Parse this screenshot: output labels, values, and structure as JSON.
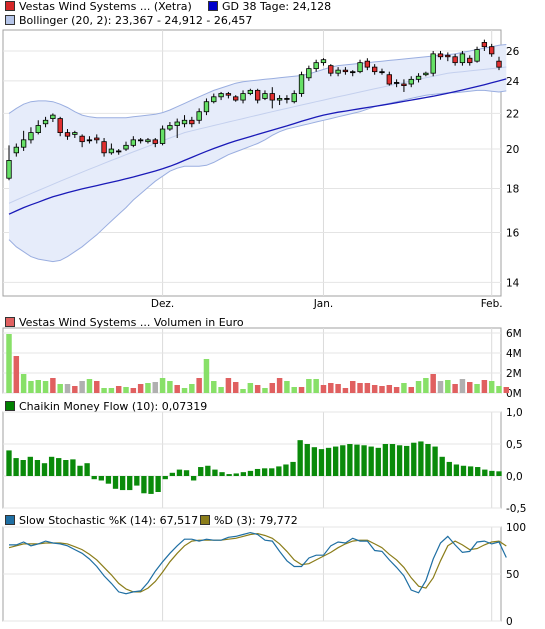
{
  "panels": {
    "price": {
      "legend": [
        {
          "label": "Vestas Wind Systems ... (Xetra)",
          "color": "#d62728"
        },
        {
          "label": "GD 38 Tage: 24,128",
          "color": "#0000cc"
        },
        {
          "label": "Bollinger (20, 2): 23,367 - 24,912 - 26,457",
          "color": "#b4c4e8"
        }
      ]
    },
    "volume": {
      "legend": [
        {
          "label": "Vestas Wind Systems ... Volumen in Euro",
          "color": "#e06060"
        }
      ]
    },
    "cmf": {
      "legend": [
        {
          "label": "Chaikin Money Flow (10): 0,07319",
          "color": "#008000"
        }
      ]
    },
    "stoch": {
      "legend": [
        {
          "label": "Slow Stochastic %K (14): 67,517",
          "color": "#1f6fa3"
        },
        {
          "label": "%D (3): 79,772",
          "color": "#8b7d1a"
        }
      ]
    }
  },
  "chart_data": [
    {
      "type": "candlestick",
      "title": "Vestas Wind Systems ... (Xetra)",
      "x_tick_labels": [
        "Dez.",
        "Jan.",
        "Feb."
      ],
      "y_tick_labels": [
        "14",
        "16",
        "18",
        "20",
        "22",
        "24",
        "26"
      ],
      "ylim": [
        13.5,
        27.5
      ],
      "y_scale": "log",
      "candles": [
        [
          18.5,
          19.4,
          18.4,
          20.2
        ],
        [
          19.8,
          20.1,
          19.6,
          20.3
        ],
        [
          20.1,
          20.5,
          19.9,
          21.0
        ],
        [
          20.5,
          20.9,
          20.3,
          21.2
        ],
        [
          20.9,
          21.3,
          20.8,
          21.6
        ],
        [
          21.4,
          21.6,
          21.2,
          21.8
        ],
        [
          21.7,
          21.9,
          21.5,
          22.0
        ],
        [
          21.7,
          20.9,
          20.7,
          21.8
        ],
        [
          20.9,
          20.7,
          20.5,
          21.1
        ],
        [
          20.8,
          20.9,
          20.6,
          21.0
        ],
        [
          20.7,
          20.4,
          20.1,
          20.8
        ],
        [
          20.5,
          20.5,
          20.3,
          20.7
        ],
        [
          20.6,
          20.5,
          20.3,
          20.8
        ],
        [
          20.4,
          19.8,
          19.6,
          20.6
        ],
        [
          19.8,
          20.0,
          19.7,
          20.3
        ],
        [
          19.9,
          19.9,
          19.7,
          20.0
        ],
        [
          20.0,
          20.2,
          19.9,
          20.4
        ],
        [
          20.2,
          20.5,
          20.1,
          20.7
        ],
        [
          20.5,
          20.5,
          20.3,
          20.6
        ],
        [
          20.4,
          20.5,
          20.3,
          20.6
        ],
        [
          20.5,
          20.3,
          20.1,
          20.6
        ],
        [
          20.3,
          21.1,
          20.2,
          21.3
        ],
        [
          21.1,
          21.3,
          21.0,
          21.5
        ],
        [
          21.3,
          21.5,
          20.6,
          21.7
        ],
        [
          21.4,
          21.6,
          21.2,
          21.9
        ],
        [
          21.6,
          21.4,
          21.2,
          21.8
        ],
        [
          21.6,
          22.1,
          21.4,
          22.3
        ],
        [
          22.1,
          22.7,
          21.9,
          22.9
        ],
        [
          22.7,
          23.0,
          22.6,
          23.2
        ],
        [
          23.0,
          23.2,
          22.8,
          23.3
        ],
        [
          23.2,
          23.1,
          22.9,
          23.3
        ],
        [
          23.0,
          22.8,
          22.7,
          23.1
        ],
        [
          22.8,
          23.2,
          22.6,
          23.4
        ],
        [
          23.2,
          23.4,
          23.1,
          23.5
        ],
        [
          23.4,
          22.8,
          22.6,
          23.5
        ],
        [
          22.9,
          23.2,
          22.8,
          23.4
        ],
        [
          23.2,
          22.8,
          22.3,
          23.6
        ],
        [
          22.8,
          22.9,
          22.5,
          23.1
        ],
        [
          22.9,
          22.9,
          22.6,
          23.1
        ],
        [
          22.7,
          23.2,
          22.6,
          23.4
        ],
        [
          23.2,
          24.4,
          23.0,
          24.6
        ],
        [
          24.2,
          24.8,
          24.0,
          25.0
        ],
        [
          24.8,
          25.2,
          24.6,
          25.4
        ],
        [
          25.2,
          25.4,
          25.0,
          25.5
        ],
        [
          25.0,
          24.5,
          24.3,
          25.1
        ],
        [
          24.5,
          24.7,
          24.3,
          24.9
        ],
        [
          24.7,
          24.6,
          24.4,
          24.9
        ],
        [
          24.6,
          24.6,
          24.3,
          24.7
        ],
        [
          24.6,
          25.2,
          24.5,
          25.4
        ],
        [
          25.3,
          24.9,
          24.7,
          25.5
        ],
        [
          24.9,
          24.6,
          24.4,
          25.1
        ],
        [
          24.6,
          24.6,
          24.4,
          24.8
        ],
        [
          24.4,
          23.8,
          23.7,
          24.6
        ],
        [
          23.9,
          23.9,
          23.6,
          24.1
        ],
        [
          23.8,
          23.7,
          23.3,
          24.1
        ],
        [
          23.8,
          24.1,
          23.6,
          24.3
        ],
        [
          24.1,
          24.3,
          23.9,
          24.5
        ],
        [
          24.4,
          24.5,
          24.3,
          24.6
        ],
        [
          24.5,
          25.8,
          24.3,
          26.0
        ],
        [
          25.8,
          25.6,
          25.4,
          26.0
        ],
        [
          25.7,
          25.6,
          25.3,
          25.9
        ],
        [
          25.6,
          25.2,
          25.0,
          25.8
        ],
        [
          25.2,
          25.8,
          25.0,
          26.0
        ],
        [
          25.5,
          25.2,
          25.0,
          25.7
        ],
        [
          25.3,
          26.1,
          25.2,
          26.3
        ],
        [
          26.6,
          26.3,
          26.0,
          26.8
        ],
        [
          26.3,
          25.8,
          25.6,
          26.5
        ],
        [
          25.3,
          24.9,
          24.7,
          25.6
        ]
      ],
      "series": [
        {
          "name": "GD 38 Tage",
          "values": [
            16.8,
            16.95,
            17.1,
            17.23,
            17.35,
            17.48,
            17.6,
            17.7,
            17.8,
            17.89,
            17.98,
            18.06,
            18.14,
            18.22,
            18.3,
            18.38,
            18.47,
            18.56,
            18.66,
            18.76,
            18.86,
            18.97,
            19.1,
            19.24,
            19.4,
            19.56,
            19.72,
            19.88,
            20.03,
            20.17,
            20.31,
            20.44,
            20.56,
            20.68,
            20.8,
            20.92,
            21.04,
            21.16,
            21.28,
            21.41,
            21.54,
            21.67,
            21.79,
            21.9,
            21.99,
            22.07,
            22.14,
            22.21,
            22.28,
            22.35,
            22.42,
            22.49,
            22.56,
            22.64,
            22.72,
            22.8,
            22.88,
            22.96,
            23.04,
            23.13,
            23.22,
            23.32,
            23.42,
            23.53,
            23.64,
            23.76,
            23.88,
            24.0,
            24.128
          ]
        },
        {
          "name": "Bollinger oben",
          "values": [
            22.0,
            22.3,
            22.55,
            22.7,
            22.75,
            22.75,
            22.7,
            22.55,
            22.35,
            22.1,
            21.9,
            21.8,
            21.75,
            21.75,
            21.75,
            21.75,
            21.75,
            21.8,
            21.85,
            21.9,
            21.95,
            22.05,
            22.2,
            22.4,
            22.6,
            22.8,
            23.0,
            23.2,
            23.4,
            23.55,
            23.7,
            23.85,
            23.95,
            24.0,
            24.05,
            24.1,
            24.15,
            24.2,
            24.25,
            24.3,
            24.35,
            24.45,
            24.6,
            24.75,
            24.9,
            25.0,
            25.05,
            25.1,
            25.15,
            25.2,
            25.25,
            25.3,
            25.35,
            25.4,
            25.45,
            25.5,
            25.55,
            25.6,
            25.65,
            25.7,
            25.75,
            25.8,
            25.9,
            26.0,
            26.1,
            26.2,
            26.3,
            26.4,
            26.457
          ]
        },
        {
          "name": "Bollinger Mitte",
          "values": [
            17.3,
            17.45,
            17.6,
            17.75,
            17.9,
            18.05,
            18.2,
            18.35,
            18.5,
            18.65,
            18.8,
            18.95,
            19.1,
            19.25,
            19.4,
            19.55,
            19.7,
            19.85,
            20.0,
            20.15,
            20.3,
            20.45,
            20.6,
            20.75,
            20.9,
            21.0,
            21.1,
            21.2,
            21.3,
            21.4,
            21.5,
            21.6,
            21.7,
            21.8,
            21.9,
            22.0,
            22.1,
            22.2,
            22.3,
            22.4,
            22.5,
            22.6,
            22.7,
            22.8,
            22.9,
            23.0,
            23.1,
            23.2,
            23.3,
            23.4,
            23.5,
            23.6,
            23.7,
            23.8,
            23.9,
            24.0,
            24.1,
            24.2,
            24.3,
            24.4,
            24.5,
            24.55,
            24.6,
            24.65,
            24.7,
            24.75,
            24.8,
            24.85,
            24.912
          ]
        },
        {
          "name": "Bollinger unten",
          "values": [
            15.7,
            15.4,
            15.2,
            15.0,
            14.9,
            14.85,
            14.8,
            14.85,
            15.0,
            15.2,
            15.4,
            15.65,
            15.9,
            16.2,
            16.5,
            16.8,
            17.1,
            17.45,
            17.75,
            18.05,
            18.35,
            18.6,
            18.85,
            19.0,
            19.1,
            19.1,
            19.1,
            19.15,
            19.3,
            19.5,
            19.7,
            19.85,
            20.0,
            20.15,
            20.3,
            20.5,
            20.75,
            20.95,
            21.1,
            21.2,
            21.3,
            21.4,
            21.5,
            21.6,
            21.7,
            21.8,
            21.9,
            22.0,
            22.1,
            22.25,
            22.4,
            22.5,
            22.6,
            22.7,
            22.8,
            22.9,
            23.0,
            23.1,
            23.15,
            23.2,
            23.25,
            23.25,
            23.3,
            23.35,
            23.4,
            23.4,
            23.35,
            23.3,
            23.367
          ]
        }
      ]
    },
    {
      "type": "bar",
      "title": "Vestas Wind Systems ... Volumen in Euro",
      "y_tick_labels": [
        "0M",
        "2M",
        "4M",
        "6M"
      ],
      "ylim": [
        0,
        6.5
      ],
      "values": [
        5.9,
        3.7,
        1.9,
        1.2,
        1.3,
        1.2,
        1.5,
        0.9,
        0.9,
        0.7,
        1.2,
        1.4,
        1.2,
        0.5,
        0.5,
        0.7,
        0.6,
        0.5,
        0.9,
        1.0,
        1.1,
        1.5,
        1.2,
        0.8,
        0.5,
        0.9,
        1.5,
        3.4,
        1.2,
        0.6,
        1.5,
        1.1,
        0.4,
        1.0,
        0.8,
        0.5,
        1.0,
        1.5,
        1.2,
        0.6,
        0.6,
        1.4,
        1.4,
        0.8,
        1.0,
        0.9,
        0.5,
        1.2,
        1.0,
        1.0,
        0.8,
        0.7,
        0.8,
        0.6,
        1.0,
        0.6,
        1.2,
        1.5,
        1.9,
        1.2,
        1.3,
        0.9,
        1.4,
        1.1,
        0.9,
        1.3,
        1.2,
        0.7,
        0.6
      ],
      "bar_colors": [
        "g",
        "r",
        "g",
        "g",
        "g",
        "g",
        "r",
        "g",
        "x",
        "r",
        "x",
        "g",
        "r",
        "g",
        "g",
        "r",
        "g",
        "r",
        "r",
        "g",
        "x",
        "g",
        "g",
        "r",
        "g",
        "g",
        "r",
        "g",
        "g",
        "g",
        "r",
        "r",
        "g",
        "g",
        "r",
        "g",
        "r",
        "r",
        "g",
        "g",
        "r",
        "g",
        "g",
        "r",
        "r",
        "r",
        "r",
        "r",
        "r",
        "r",
        "r",
        "r",
        "r",
        "r",
        "g",
        "r",
        "g",
        "g",
        "r",
        "x",
        "g",
        "r",
        "x",
        "r",
        "g",
        "r",
        "g",
        "g",
        "r"
      ]
    },
    {
      "type": "bar",
      "title": "Chaikin Money Flow (10): 0,07319",
      "y_tick_labels": [
        "-0,5",
        "0,0",
        "0,5",
        "1,0"
      ],
      "ylim": [
        -0.5,
        1.0
      ],
      "values": [
        0.4,
        0.28,
        0.25,
        0.3,
        0.25,
        0.2,
        0.3,
        0.28,
        0.25,
        0.26,
        0.16,
        0.2,
        -0.05,
        -0.07,
        -0.12,
        -0.2,
        -0.22,
        -0.22,
        -0.15,
        -0.27,
        -0.28,
        -0.25,
        -0.05,
        0.05,
        0.1,
        0.09,
        -0.07,
        0.14,
        0.16,
        0.1,
        0.06,
        0.03,
        0.04,
        0.06,
        0.08,
        0.11,
        0.12,
        0.12,
        0.15,
        0.18,
        0.22,
        0.56,
        0.5,
        0.45,
        0.42,
        0.44,
        0.46,
        0.48,
        0.5,
        0.49,
        0.48,
        0.46,
        0.44,
        0.5,
        0.5,
        0.48,
        0.47,
        0.52,
        0.54,
        0.5,
        0.46,
        0.3,
        0.22,
        0.18,
        0.16,
        0.15,
        0.14,
        0.1,
        0.08,
        0.073
      ]
    },
    {
      "type": "line",
      "title": "Slow Stochastic %K (14) / %D (3)",
      "y_tick_labels": [
        "0",
        "50",
        "100"
      ],
      "ylim": [
        0,
        100
      ],
      "series": [
        {
          "name": "%K (14)",
          "values": [
            81,
            81,
            84,
            80,
            82,
            85,
            83,
            82,
            80,
            76,
            72,
            66,
            58,
            48,
            40,
            31,
            29,
            31,
            32,
            41,
            53,
            63,
            72,
            80,
            87,
            87,
            85,
            87,
            86,
            86,
            89,
            90,
            92,
            94,
            92,
            86,
            85,
            74,
            64,
            58,
            58,
            67,
            70,
            70,
            80,
            84,
            83,
            88,
            85,
            85,
            75,
            74,
            65,
            57,
            48,
            33,
            30,
            43,
            66,
            83,
            90,
            81,
            73,
            74,
            84,
            85,
            82,
            84,
            67.517
          ]
        },
        {
          "name": "%D (3)",
          "values": [
            78,
            80,
            82,
            82,
            82,
            83,
            83,
            83,
            82,
            79,
            76,
            71,
            65,
            57,
            49,
            40,
            34,
            31,
            31,
            35,
            42,
            52,
            63,
            72,
            80,
            85,
            86,
            86,
            86,
            86,
            87,
            88,
            90,
            92,
            93,
            91,
            88,
            82,
            74,
            65,
            60,
            61,
            65,
            69,
            73,
            78,
            82,
            85,
            86,
            86,
            82,
            78,
            71,
            65,
            57,
            46,
            37,
            35,
            46,
            64,
            80,
            85,
            81,
            76,
            77,
            81,
            84,
            85,
            79.772
          ]
        }
      ]
    }
  ]
}
